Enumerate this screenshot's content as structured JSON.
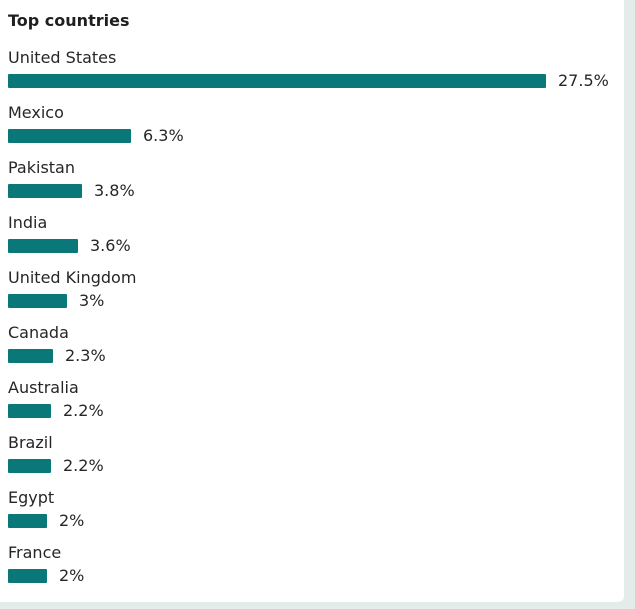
{
  "panel": {
    "title": "Top countries"
  },
  "colors": {
    "bar": "#0a7779",
    "background": "#e4ecea",
    "card": "#ffffff"
  },
  "chart_data": {
    "type": "bar",
    "orientation": "horizontal",
    "title": "Top countries",
    "categories": [
      "United States",
      "Mexico",
      "Pakistan",
      "India",
      "United Kingdom",
      "Canada",
      "Australia",
      "Brazil",
      "Egypt",
      "France"
    ],
    "values": [
      27.5,
      6.3,
      3.8,
      3.6,
      3,
      2.3,
      2.2,
      2.2,
      2,
      2
    ],
    "value_labels": [
      "27.5%",
      "6.3%",
      "3.8%",
      "3.6%",
      "3%",
      "2.3%",
      "2.2%",
      "2.2%",
      "2%",
      "2%"
    ],
    "unit": "%",
    "grid": false,
    "legend": "none"
  }
}
